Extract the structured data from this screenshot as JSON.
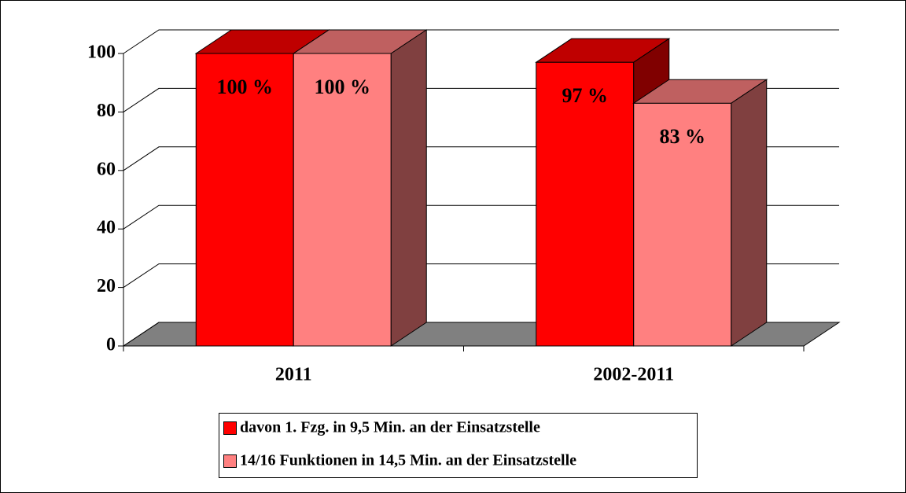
{
  "chart_data": {
    "type": "bar3d",
    "categories": [
      "2011",
      "2002-2011"
    ],
    "series": [
      {
        "name": "davon 1. Fzg. in 9,5 Min. an der Einsatzstelle",
        "color": "#ff0000",
        "values": [
          100,
          97
        ],
        "value_labels": [
          "100 %",
          "97 %"
        ]
      },
      {
        "name": "14/16 Funktionen in 14,5 Min. an der Einsatzstelle",
        "color": "#ff8080",
        "values": [
          100,
          83
        ],
        "value_labels": [
          "100 %",
          "83 %"
        ]
      }
    ],
    "ylim": [
      0,
      100
    ],
    "yticks": [
      0,
      20,
      40,
      60,
      80,
      100
    ],
    "grid": true
  }
}
